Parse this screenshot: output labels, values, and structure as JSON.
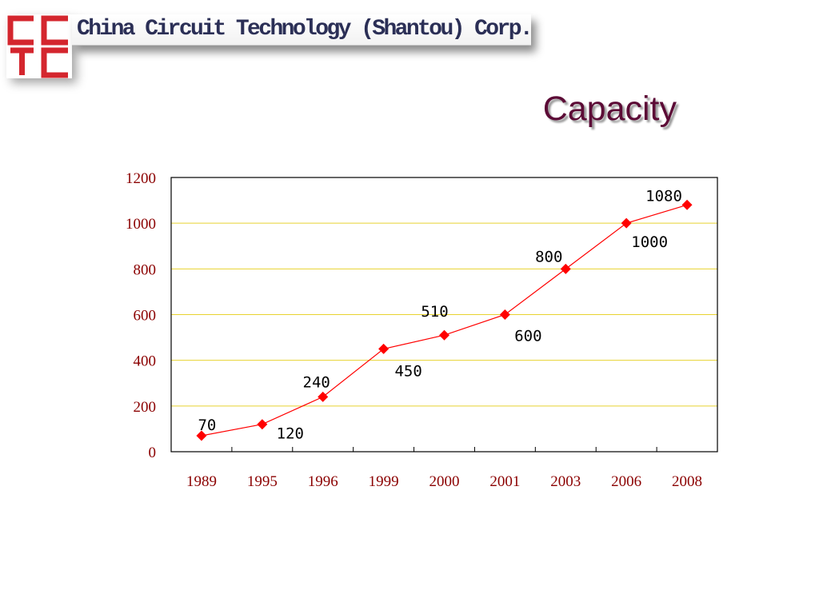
{
  "header": {
    "company_name": "China Circuit Technology (Shantou) Corp.",
    "logo_letters": [
      "C",
      "C",
      "T",
      "C"
    ],
    "logo_color": "#d4262e"
  },
  "slide": {
    "title": "Capacity"
  },
  "chart_data": {
    "type": "line",
    "title": "",
    "xlabel": "",
    "ylabel": "",
    "categories": [
      "1989",
      "1995",
      "1996",
      "1999",
      "2000",
      "2001",
      "2003",
      "2006",
      "2008"
    ],
    "series": [
      {
        "values": [
          70,
          120,
          240,
          450,
          510,
          600,
          800,
          1000,
          1080
        ],
        "color": "#ff0000"
      }
    ],
    "data_labels": [
      "70",
      "120",
      "240",
      "450",
      "510",
      "600",
      "800",
      "1000",
      "1080"
    ],
    "ylim": [
      0,
      1200
    ],
    "yticks": [
      "0",
      "200",
      "400",
      "600",
      "800",
      "1000",
      "1200"
    ],
    "grid": true,
    "grid_color": "#e8d230",
    "tick_label_color": "#8b0000",
    "legend": "none"
  }
}
